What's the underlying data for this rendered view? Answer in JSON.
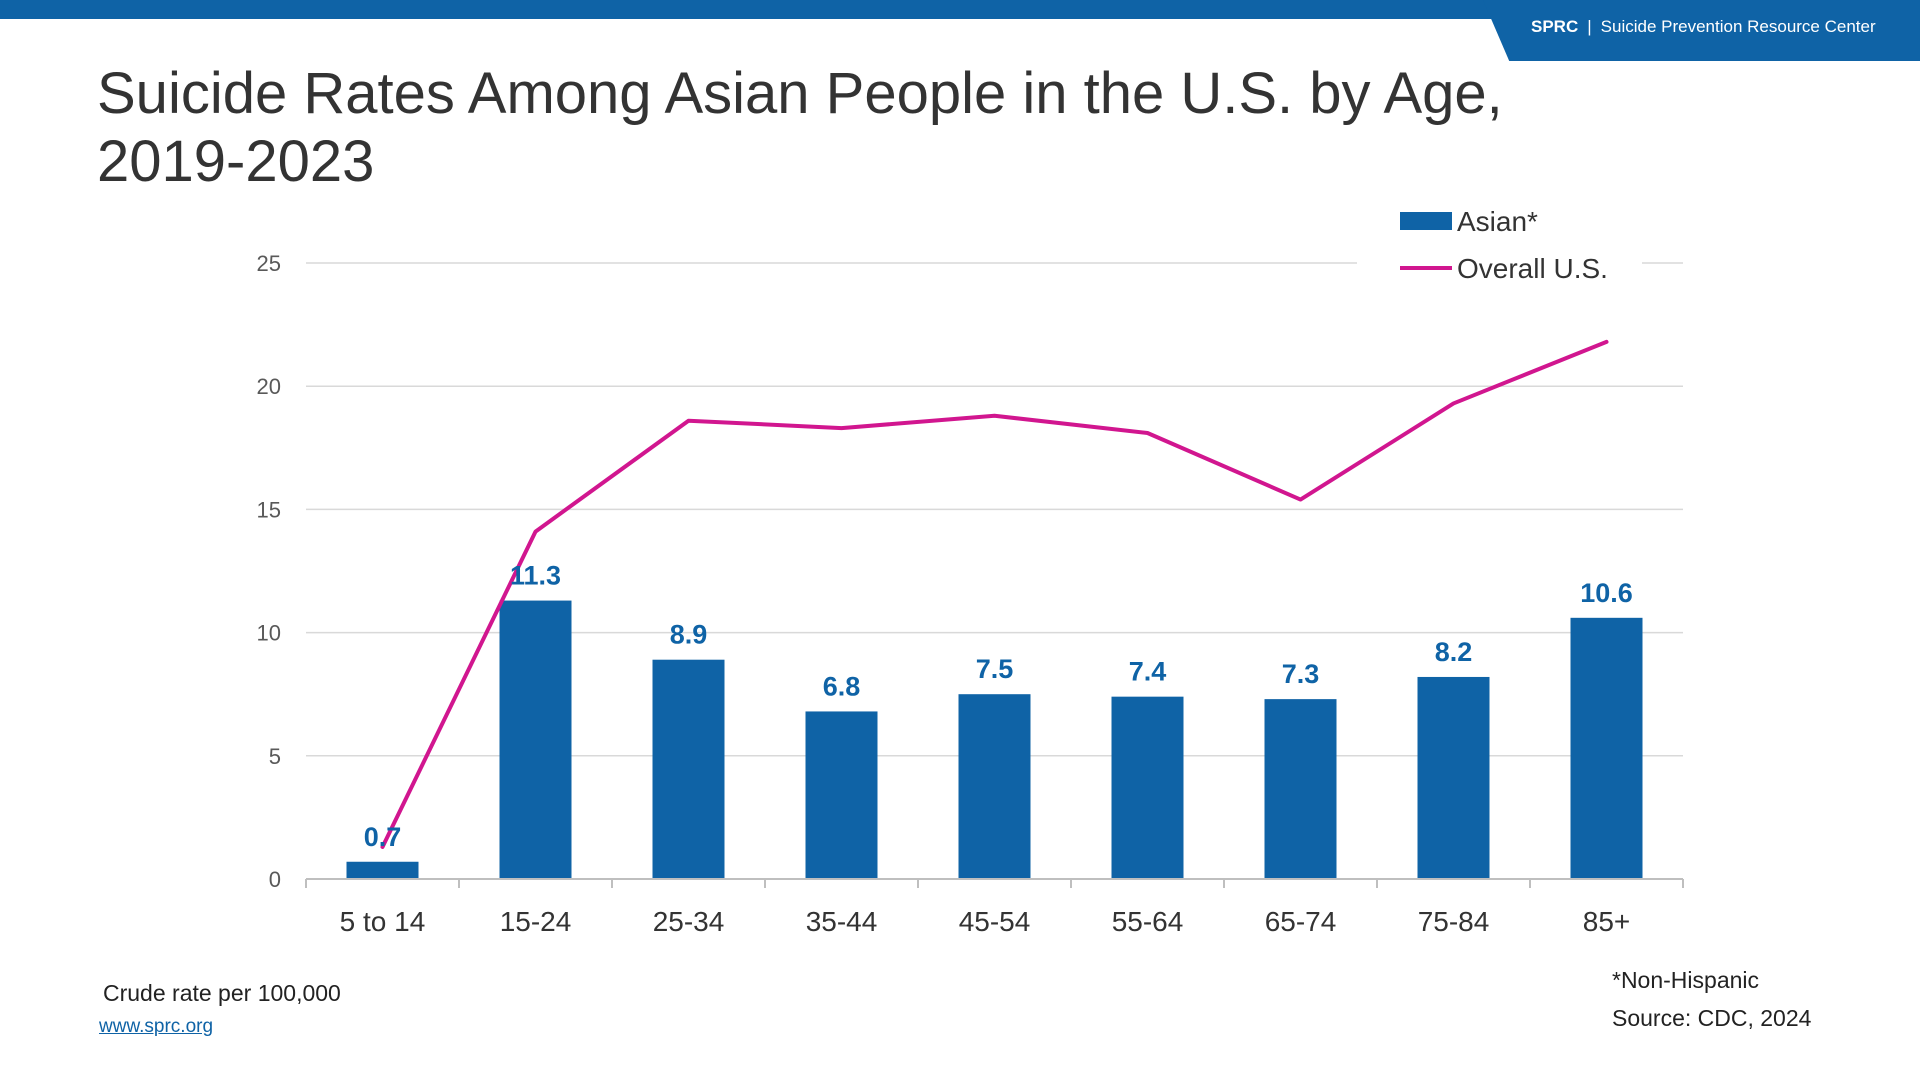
{
  "header": {
    "brand_abbr": "SPRC",
    "brand_separator": "|",
    "brand_name": "Suicide Prevention Resource Center"
  },
  "title_line1": "Suicide Rates Among Asian People in the U.S. by Age,",
  "title_line2": "2019-2023",
  "chart_data": {
    "type": "bar",
    "categories": [
      "5 to 14",
      "15-24",
      "25-34",
      "35-44",
      "45-54",
      "55-64",
      "65-74",
      "75-84",
      "85+"
    ],
    "series": [
      {
        "name": "Asian*",
        "type": "bar",
        "color": "#0f63a6",
        "values": [
          0.7,
          11.3,
          8.9,
          6.8,
          7.5,
          7.4,
          7.3,
          8.2,
          10.6
        ],
        "labels": [
          "0.7",
          "11.3",
          "8.9",
          "6.8",
          "7.5",
          "7.4",
          "7.3",
          "8.2",
          "10.6"
        ]
      },
      {
        "name": "Overall U.S.",
        "type": "line",
        "color": "#d1168f",
        "values": [
          1.3,
          14.1,
          18.6,
          18.3,
          18.8,
          18.1,
          15.4,
          19.3,
          21.8
        ]
      }
    ],
    "ylim": [
      0,
      25
    ],
    "yticks": [
      "0",
      "5",
      "10",
      "15",
      "20",
      "25"
    ],
    "grid": true,
    "legend_position": "top-right",
    "xlabel": "",
    "ylabel": ""
  },
  "footnotes": {
    "unit_note": "Crude rate per 100,000",
    "non_hispanic": "*Non-Hispanic",
    "source": "Source: CDC, 2024",
    "url": "www.sprc.org"
  }
}
